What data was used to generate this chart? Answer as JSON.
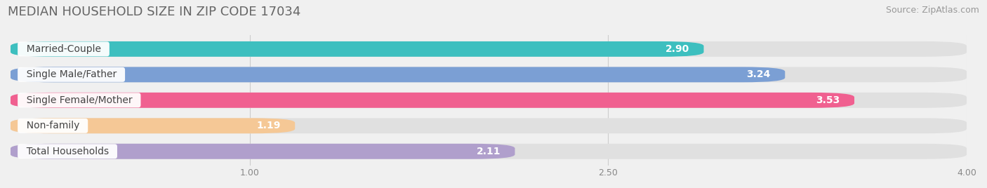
{
  "title": "MEDIAN HOUSEHOLD SIZE IN ZIP CODE 17034",
  "source": "Source: ZipAtlas.com",
  "categories": [
    "Married-Couple",
    "Single Male/Father",
    "Single Female/Mother",
    "Non-family",
    "Total Households"
  ],
  "values": [
    2.9,
    3.24,
    3.53,
    1.19,
    2.11
  ],
  "bar_colors": [
    "#3dbfbf",
    "#7b9fd4",
    "#f06090",
    "#f5c896",
    "#b09fcc"
  ],
  "xlim": [
    0,
    4.0
  ],
  "xticks": [
    1.0,
    2.5,
    4.0
  ],
  "background_color": "#f0f0f0",
  "bar_background_color": "#e0e0e0",
  "title_fontsize": 13,
  "source_fontsize": 9,
  "label_fontsize": 10,
  "value_fontsize": 10,
  "tick_fontsize": 9,
  "fig_width": 14.06,
  "fig_height": 2.68
}
